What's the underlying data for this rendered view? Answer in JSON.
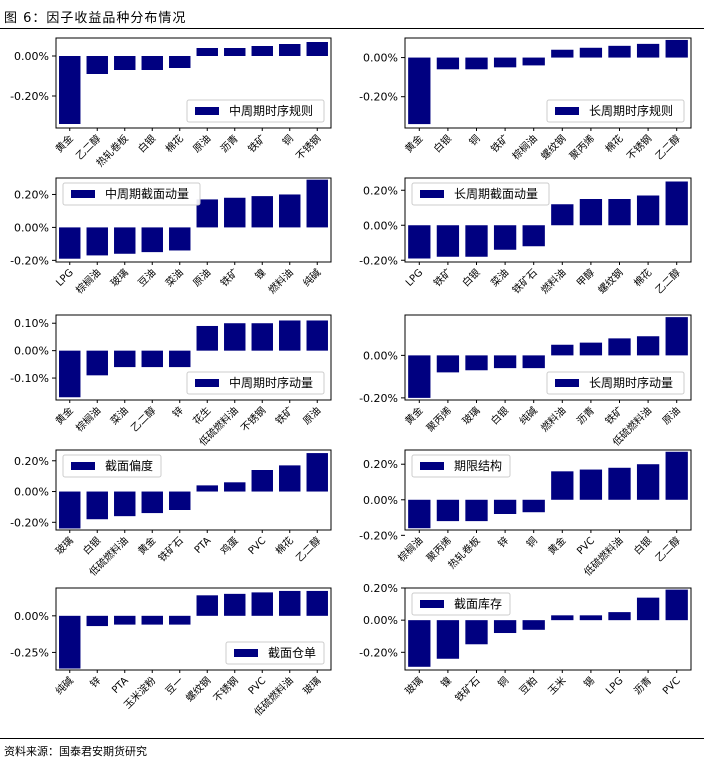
{
  "figure": {
    "title": "图 6：因子收益品种分布情况",
    "source": "资料来源：国泰君安期货研究"
  },
  "colors": {
    "bar": "#000080",
    "axis": "#000000",
    "legend_border": "#cccccc"
  },
  "chart_data": [
    {
      "type": "bar",
      "legend": "中周期时序规则",
      "legend_pos": "bottom-right",
      "categories": [
        "黄金",
        "乙二醇",
        "热轧卷板",
        "白银",
        "棉花",
        "原油",
        "沥青",
        "铁矿",
        "铜",
        "不锈钢"
      ],
      "values": [
        -0.34,
        -0.09,
        -0.07,
        -0.07,
        -0.06,
        0.04,
        0.04,
        0.05,
        0.06,
        0.07
      ],
      "ylim": [
        -0.36,
        0.09
      ],
      "yticks": [
        0.0,
        -0.2
      ],
      "ytick_labels": [
        "0.00%",
        "-0.20%"
      ]
    },
    {
      "type": "bar",
      "legend": "长周期时序规则",
      "legend_pos": "bottom-right",
      "categories": [
        "黄金",
        "白银",
        "铜",
        "铁矿",
        "棕榈油",
        "螺纹钢",
        "聚丙烯",
        "棉花",
        "不锈钢",
        "乙二醇"
      ],
      "values": [
        -0.34,
        -0.06,
        -0.06,
        -0.05,
        -0.04,
        0.04,
        0.05,
        0.06,
        0.07,
        0.09
      ],
      "ylim": [
        -0.36,
        0.1
      ],
      "yticks": [
        0.0,
        -0.2
      ],
      "ytick_labels": [
        "0.00%",
        "-0.20%"
      ]
    },
    {
      "type": "bar",
      "legend": "中周期截面动量",
      "legend_pos": "top-left",
      "categories": [
        "LPG",
        "棕榈油",
        "玻璃",
        "豆油",
        "菜油",
        "原油",
        "铁矿",
        "镍",
        "燃料油",
        "纯碱"
      ],
      "values": [
        -0.19,
        -0.17,
        -0.16,
        -0.15,
        -0.14,
        0.17,
        0.18,
        0.19,
        0.2,
        0.29
      ],
      "ylim": [
        -0.21,
        0.3
      ],
      "yticks": [
        0.2,
        0.0,
        -0.2
      ],
      "ytick_labels": [
        "0.20%",
        "0.00%",
        "-0.20%"
      ]
    },
    {
      "type": "bar",
      "legend": "长周期截面动量",
      "legend_pos": "top-left",
      "categories": [
        "LPG",
        "铁矿",
        "白银",
        "菜油",
        "铁矿石",
        "燃料油",
        "甲醇",
        "螺纹钢",
        "棉花",
        "乙二醇"
      ],
      "values": [
        -0.19,
        -0.18,
        -0.18,
        -0.14,
        -0.12,
        0.12,
        0.15,
        0.15,
        0.17,
        0.25
      ],
      "ylim": [
        -0.21,
        0.27
      ],
      "yticks": [
        0.2,
        0.0,
        -0.2
      ],
      "ytick_labels": [
        "0.20%",
        "0.00%",
        "-0.20%"
      ]
    },
    {
      "type": "bar",
      "legend": "中周期时序动量",
      "legend_pos": "bottom-right",
      "categories": [
        "黄金",
        "棕榈油",
        "菜油",
        "乙二醇",
        "锌",
        "花生",
        "低硫燃料油",
        "不锈钢",
        "铁矿",
        "原油"
      ],
      "values": [
        -0.17,
        -0.09,
        -0.06,
        -0.06,
        -0.06,
        0.09,
        0.1,
        0.1,
        0.11,
        0.11
      ],
      "ylim": [
        -0.18,
        0.13
      ],
      "yticks": [
        0.1,
        0.0,
        -0.1
      ],
      "ytick_labels": [
        "0.10%",
        "0.00%",
        "-0.10%"
      ]
    },
    {
      "type": "bar",
      "legend": "长周期时序动量",
      "legend_pos": "bottom-right",
      "categories": [
        "黄金",
        "聚丙烯",
        "玻璃",
        "白银",
        "纯碱",
        "燃料油",
        "沥青",
        "铁矿",
        "低硫燃料油",
        "原油"
      ],
      "values": [
        -0.2,
        -0.08,
        -0.07,
        -0.06,
        -0.06,
        0.05,
        0.06,
        0.08,
        0.09,
        0.18
      ],
      "ylim": [
        -0.21,
        0.19
      ],
      "yticks": [
        0.0,
        -0.2
      ],
      "ytick_labels": [
        "0.00%",
        "-0.20%"
      ]
    },
    {
      "type": "bar",
      "legend": "截面偏度",
      "legend_pos": "top-left",
      "categories": [
        "玻璃",
        "白银",
        "低硫燃料油",
        "黄金",
        "铁矿石",
        "PTA",
        "鸡蛋",
        "PVC",
        "棉花",
        "乙二醇"
      ],
      "values": [
        -0.24,
        -0.18,
        -0.16,
        -0.14,
        -0.12,
        0.04,
        0.06,
        0.14,
        0.17,
        0.25
      ],
      "ylim": [
        -0.25,
        0.27
      ],
      "yticks": [
        0.2,
        0.0,
        -0.2
      ],
      "ytick_labels": [
        "0.20%",
        "0.00%",
        "-0.20%"
      ]
    },
    {
      "type": "bar",
      "legend": "期限结构",
      "legend_pos": "top-left",
      "categories": [
        "棕榈油",
        "聚丙烯",
        "热轧卷板",
        "锌",
        "铜",
        "黄金",
        "PVC",
        "低硫燃料油",
        "白银",
        "乙二醇"
      ],
      "values": [
        -0.16,
        -0.12,
        -0.12,
        -0.08,
        -0.07,
        0.16,
        0.17,
        0.18,
        0.2,
        0.27
      ],
      "ylim": [
        -0.17,
        0.28
      ],
      "yticks": [
        0.2,
        0.0,
        -0.2
      ],
      "ytick_labels": [
        "0.20%",
        "0.00%",
        "-0.20%"
      ]
    },
    {
      "type": "bar",
      "legend": "截面仓单",
      "legend_pos": "bottom-right",
      "categories": [
        "纯碱",
        "锌",
        "PTA",
        "玉米淀粉",
        "豆一",
        "螺纹钢",
        "不锈钢",
        "PVC",
        "低硫燃料油",
        "玻璃"
      ],
      "values": [
        -0.36,
        -0.07,
        -0.06,
        -0.06,
        -0.06,
        0.14,
        0.15,
        0.16,
        0.17,
        0.17
      ],
      "ylim": [
        -0.37,
        0.19
      ],
      "yticks": [
        0.0,
        -0.25
      ],
      "ytick_labels": [
        "0.00%",
        "-0.25%"
      ]
    },
    {
      "type": "bar",
      "legend": "截面库存",
      "legend_pos": "top-left",
      "categories": [
        "玻璃",
        "镍",
        "铁矿石",
        "铜",
        "豆粕",
        "玉米",
        "锡",
        "LPG",
        "沥青",
        "PVC"
      ],
      "values": [
        -0.29,
        -0.24,
        -0.15,
        -0.08,
        -0.06,
        0.03,
        0.03,
        0.05,
        0.14,
        0.19
      ],
      "ylim": [
        -0.31,
        0.2
      ],
      "yticks": [
        0.2,
        0.0,
        -0.2
      ],
      "ytick_labels": [
        "0.20%",
        "0.00%",
        "-0.20%"
      ]
    }
  ]
}
